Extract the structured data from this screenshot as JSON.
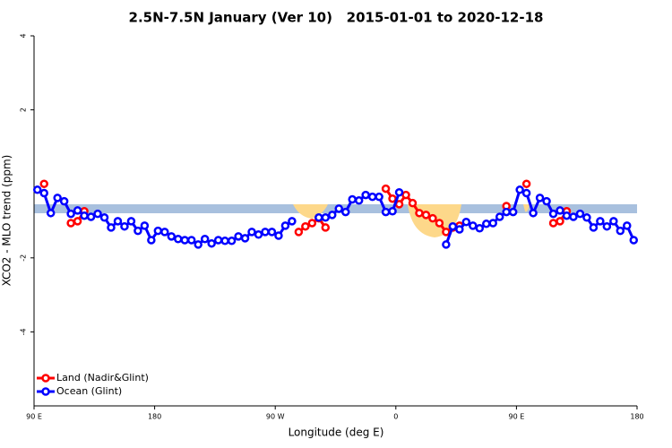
{
  "chart_data": {
    "type": "line",
    "title": "2.5N-7.5N January (Ver 10)   2015-01-01 to 2020-12-18",
    "x_label": "Longitude (deg E)",
    "y_label": "XCO2 - MLO trend (ppm)",
    "xlim": [
      90,
      540
    ],
    "xticks": [
      {
        "value": 90,
        "label": "90 E"
      },
      180,
      {
        "value": 270,
        "label": "90 W"
      },
      {
        "value": 360,
        "label": "0"
      },
      {
        "value": 450,
        "label": "90 E"
      },
      {
        "value": 540,
        "label": "180"
      }
    ],
    "ylim": [
      -6,
      4
    ],
    "yticks": [
      -4,
      -2,
      2,
      4
    ],
    "legend": "bottom-left",
    "x": [
      92.5,
      97.5,
      102.5,
      107.5,
      112.5,
      117.5,
      122.5,
      127.5,
      132.5,
      137.5,
      142.5,
      147.5,
      152.5,
      157.5,
      162.5,
      167.5,
      172.5,
      177.5,
      182.5,
      187.5,
      192.5,
      197.5,
      202.5,
      207.5,
      212.5,
      217.5,
      222.5,
      227.5,
      232.5,
      237.5,
      242.5,
      247.5,
      252.5,
      257.5,
      262.5,
      267.5,
      272.5,
      277.5,
      282.5,
      287.5,
      292.5,
      297.5,
      302.5,
      307.5,
      312.5,
      317.5,
      322.5,
      327.5,
      332.5,
      337.5,
      342.5,
      347.5,
      352.5,
      357.5,
      362.5,
      367.5,
      372.5,
      377.5,
      382.5,
      387.5,
      392.5,
      397.5,
      402.5,
      407.5,
      412.5,
      417.5,
      422.5,
      427.5,
      432.5,
      437.5,
      442.5,
      447.5,
      452.5,
      457.5,
      462.5,
      467.5,
      472.5,
      477.5,
      482.5,
      487.5,
      492.5,
      497.5,
      502.5,
      507.5,
      512.5,
      517.5,
      522.5,
      527.5,
      532.5,
      537.5
    ],
    "series": [
      {
        "name": "Land (Nadir&Glint)",
        "color": "#ff0000",
        "values": [
          null,
          0.0,
          null,
          null,
          null,
          -1.06,
          -1.01,
          -0.74,
          null,
          null,
          null,
          null,
          null,
          null,
          null,
          null,
          null,
          null,
          null,
          null,
          null,
          null,
          null,
          null,
          null,
          null,
          null,
          null,
          null,
          null,
          null,
          null,
          null,
          null,
          null,
          null,
          null,
          null,
          null,
          -1.3,
          -1.15,
          -1.06,
          -0.93,
          -1.18,
          null,
          null,
          null,
          null,
          null,
          null,
          null,
          null,
          -0.13,
          -0.4,
          -0.55,
          -0.3,
          -0.52,
          -0.79,
          -0.84,
          -0.93,
          -1.06,
          -1.3,
          -1.18,
          -1.13,
          null,
          null,
          null,
          null,
          null,
          null,
          -0.6,
          null,
          null,
          0.0,
          null,
          null,
          null,
          -1.06,
          -1.01,
          -0.74,
          null,
          null,
          null,
          null,
          null,
          null,
          null,
          null,
          null,
          null
        ]
      },
      {
        "name": "Ocean (Glint)",
        "color": "#0000ff",
        "values": [
          -0.16,
          -0.25,
          -0.79,
          -0.38,
          -0.47,
          -0.81,
          -0.72,
          -0.86,
          -0.89,
          -0.81,
          -0.91,
          -1.18,
          -1.01,
          -1.15,
          -1.01,
          -1.27,
          -1.13,
          -1.52,
          -1.27,
          -1.3,
          -1.42,
          -1.49,
          -1.52,
          -1.52,
          -1.64,
          -1.49,
          -1.61,
          -1.52,
          -1.54,
          -1.54,
          -1.42,
          -1.47,
          -1.3,
          -1.37,
          -1.3,
          -1.3,
          -1.4,
          -1.13,
          -1.01,
          null,
          null,
          null,
          -0.91,
          -0.91,
          -0.84,
          -0.67,
          -0.76,
          -0.42,
          -0.45,
          -0.3,
          -0.35,
          -0.35,
          -0.76,
          -0.74,
          -0.23,
          null,
          null,
          null,
          null,
          null,
          null,
          -1.64,
          -1.15,
          -1.23,
          -1.03,
          -1.13,
          -1.2,
          -1.08,
          -1.06,
          -0.89,
          -0.76,
          -0.76,
          -0.16,
          -0.25,
          -0.79,
          -0.38,
          -0.47,
          -0.81,
          -0.72,
          -0.86,
          -0.89,
          -0.81,
          -0.91,
          -1.18,
          -1.01,
          -1.15,
          -1.01,
          -1.27,
          -1.13,
          -1.52
        ]
      }
    ]
  }
}
